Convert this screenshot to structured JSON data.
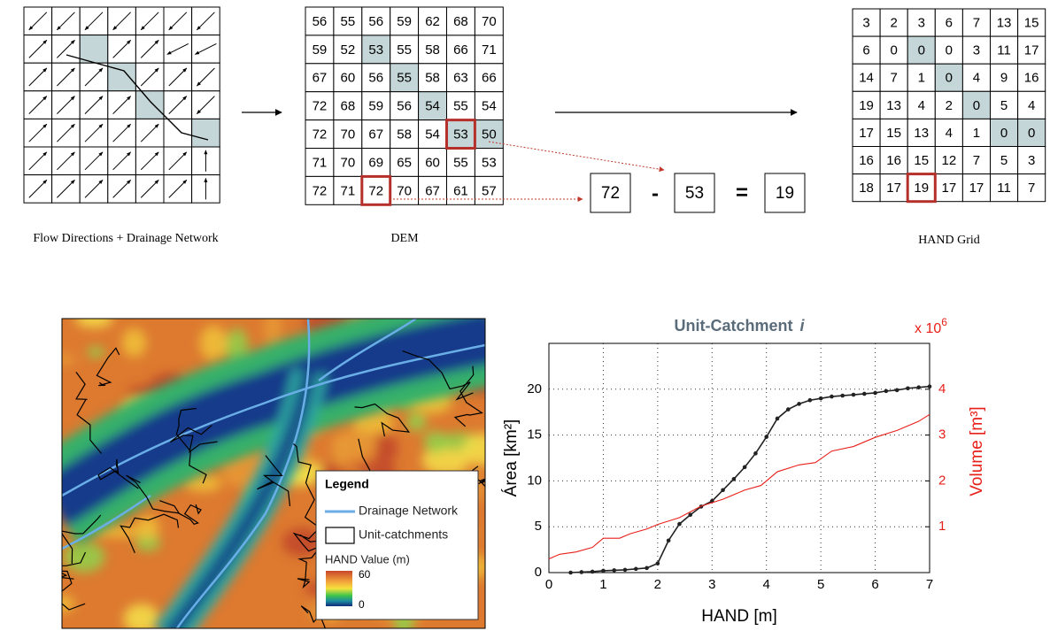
{
  "flow_grid": {
    "caption": "Flow Directions + Drainage Network"
  },
  "dem": {
    "caption": "DEM",
    "rows": [
      [
        56,
        55,
        56,
        59,
        62,
        68,
        70
      ],
      [
        59,
        52,
        53,
        55,
        58,
        66,
        71
      ],
      [
        67,
        60,
        56,
        55,
        58,
        63,
        66
      ],
      [
        72,
        68,
        59,
        56,
        54,
        55,
        54
      ],
      [
        72,
        70,
        67,
        58,
        54,
        53,
        50
      ],
      [
        71,
        70,
        69,
        65,
        60,
        55,
        53
      ],
      [
        72,
        71,
        72,
        70,
        67,
        61,
        57
      ]
    ]
  },
  "hand_grid": {
    "caption": "HAND Grid",
    "rows": [
      [
        3,
        2,
        3,
        6,
        7,
        13,
        15
      ],
      [
        6,
        0,
        0,
        0,
        3,
        11,
        17
      ],
      [
        14,
        7,
        1,
        0,
        4,
        9,
        16
      ],
      [
        19,
        13,
        4,
        2,
        0,
        5,
        4
      ],
      [
        17,
        15,
        13,
        4,
        1,
        0,
        0
      ],
      [
        16,
        16,
        15,
        12,
        7,
        5,
        3
      ],
      [
        18,
        17,
        19,
        17,
        17,
        11,
        7
      ]
    ]
  },
  "equation": {
    "minuend": 72,
    "operator": "-",
    "subtrahend": 53,
    "equals": "=",
    "result": 19
  },
  "map": {
    "legend": {
      "title": "Legend",
      "drainage": "Drainage Network",
      "catchments": "Unit-catchments",
      "hand_title": "HAND Value (m)",
      "high": 60,
      "low": 0
    }
  },
  "chart_data": {
    "type": "line",
    "title": "Unit-Catchment",
    "title_italic": "i",
    "x_label": "HAND [m]",
    "y_label": "Área [km²]",
    "y2_label": "Volume [m³]",
    "y2_multiplier": "x 10",
    "y2_multiplier_exponent": 6,
    "xlim": [
      0,
      7
    ],
    "xticks": [
      0,
      1,
      2,
      3,
      4,
      5,
      6,
      7
    ],
    "ylim": [
      0,
      25
    ],
    "yticks": [
      0,
      5,
      10,
      15,
      20
    ],
    "y2lim": [
      0,
      5
    ],
    "y2ticks": [
      1,
      2,
      3,
      4
    ],
    "grid": true,
    "series": [
      {
        "color": "#222222",
        "markers": true,
        "x": [
          0.4,
          0.6,
          0.8,
          1.0,
          1.2,
          1.4,
          1.6,
          1.8,
          2.0,
          2.2,
          2.4,
          2.6,
          2.8,
          3.0,
          3.2,
          3.4,
          3.6,
          3.8,
          4.0,
          4.2,
          4.4,
          4.6,
          4.8,
          5.0,
          5.2,
          5.4,
          5.6,
          5.8,
          6.0,
          6.2,
          6.4,
          6.6,
          6.8,
          7.0
        ],
        "values": [
          0,
          0.05,
          0.1,
          0.2,
          0.25,
          0.3,
          0.4,
          0.5,
          1.0,
          3.5,
          5.3,
          6.3,
          7.2,
          7.8,
          9.0,
          10.2,
          11.5,
          13.0,
          14.8,
          16.8,
          17.8,
          18.4,
          18.8,
          19.0,
          19.2,
          19.3,
          19.4,
          19.5,
          19.6,
          19.8,
          19.9,
          20.1,
          20.2,
          20.3
        ]
      },
      {
        "color": "#e8201a",
        "axis": "y2",
        "markers": false,
        "x": [
          0,
          0.2,
          0.5,
          0.8,
          1.0,
          1.3,
          1.5,
          1.8,
          2.0,
          2.4,
          2.8,
          3.2,
          3.6,
          3.9,
          4.2,
          4.6,
          4.9,
          5.2,
          5.6,
          6.0,
          6.4,
          6.8,
          7.0
        ],
        "values": [
          0.3,
          0.4,
          0.45,
          0.55,
          0.75,
          0.75,
          0.85,
          0.95,
          1.05,
          1.2,
          1.45,
          1.6,
          1.8,
          1.9,
          2.2,
          2.35,
          2.4,
          2.65,
          2.75,
          2.95,
          3.1,
          3.3,
          3.45
        ]
      }
    ]
  }
}
